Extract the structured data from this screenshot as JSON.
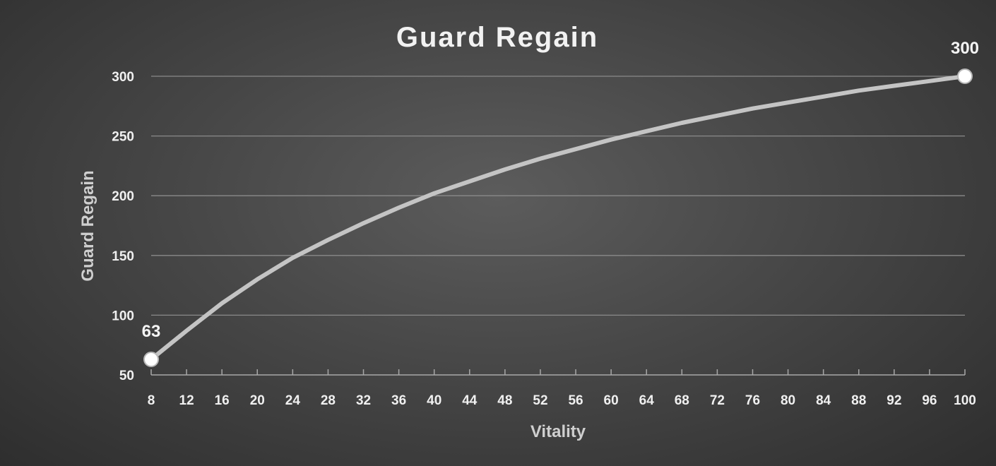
{
  "chart_data": {
    "type": "line",
    "title": "Guard Regain",
    "xlabel": "Vitality",
    "ylabel": "Guard Regain",
    "xlim": [
      8,
      100
    ],
    "ylim": [
      50,
      300
    ],
    "x_ticks": [
      8,
      12,
      16,
      20,
      24,
      28,
      32,
      36,
      40,
      44,
      48,
      52,
      56,
      60,
      64,
      68,
      72,
      76,
      80,
      84,
      88,
      92,
      96,
      100
    ],
    "y_ticks": [
      50,
      100,
      150,
      200,
      250,
      300
    ],
    "grid": "horizontal",
    "legend": "none",
    "series": [
      {
        "color": "#c4c4c4",
        "x": [
          8,
          12,
          16,
          20,
          24,
          28,
          32,
          36,
          40,
          44,
          48,
          52,
          56,
          60,
          64,
          68,
          72,
          76,
          80,
          84,
          88,
          92,
          96,
          100
        ],
        "y": [
          63,
          87,
          110,
          130,
          148,
          163,
          177,
          190,
          202,
          212,
          222,
          231,
          239,
          247,
          254,
          261,
          267,
          273,
          278,
          283,
          288,
          292,
          296,
          300
        ]
      }
    ],
    "data_labels": [
      {
        "x": 8,
        "y": 63,
        "text": "63"
      },
      {
        "x": 100,
        "y": 300,
        "text": "300"
      }
    ]
  }
}
